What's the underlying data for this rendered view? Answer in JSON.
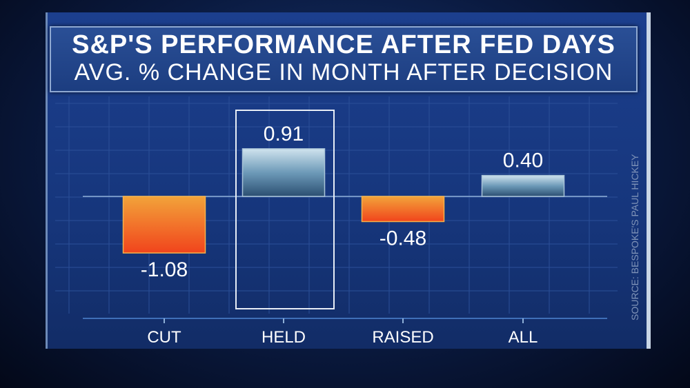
{
  "chart_data": {
    "type": "bar",
    "title": "S&P'S PERFORMANCE AFTER FED DAYS",
    "subtitle": "AVG. % CHANGE IN MONTH AFTER DECISION",
    "categories": [
      "CUT",
      "HELD",
      "RAISED",
      "ALL"
    ],
    "values": [
      -1.08,
      0.91,
      -0.48,
      0.4
    ],
    "value_labels": [
      "-1.08",
      "0.91",
      "-0.48",
      "0.40"
    ],
    "highlighted": "HELD",
    "xlabel": "",
    "ylabel": "",
    "ylim": [
      -1.5,
      1.5
    ],
    "grid": true,
    "colors": {
      "positive": "#5d8aa8",
      "negative": "#f26a1e"
    }
  },
  "source": "SOURCE: BESPOKE'S PAUL HICKEY"
}
